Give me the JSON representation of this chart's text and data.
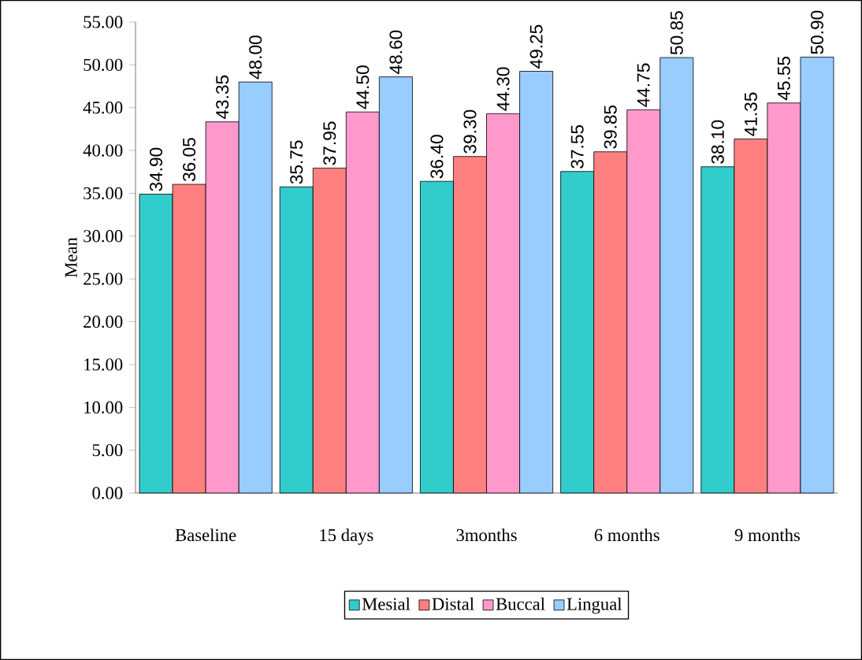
{
  "chart_data": {
    "type": "bar",
    "ylabel": "Mean",
    "categories": [
      "Baseline",
      "15 days",
      "3months",
      "6 months",
      "9 months"
    ],
    "series": [
      {
        "name": "Mesial",
        "color": "#33cccc",
        "values": [
          34.9,
          35.75,
          36.4,
          37.55,
          38.1
        ],
        "value_labels": [
          "34.90",
          "35.75",
          "36.40",
          "37.55",
          "38.10"
        ]
      },
      {
        "name": "Distal",
        "color": "#ff8080",
        "values": [
          36.05,
          37.95,
          39.3,
          39.85,
          41.35
        ],
        "value_labels": [
          "36.05",
          "37.95",
          "39.30",
          "39.85",
          "41.35"
        ]
      },
      {
        "name": "Buccal",
        "color": "#ff99cc",
        "values": [
          43.35,
          44.5,
          44.3,
          44.75,
          45.55
        ],
        "value_labels": [
          "43.35",
          "44.50",
          "44.30",
          "44.75",
          "45.55"
        ]
      },
      {
        "name": "Lingual",
        "color": "#99ccff",
        "values": [
          48.0,
          48.6,
          49.25,
          50.85,
          50.9
        ],
        "value_labels": [
          "48.00",
          "48.60",
          "49.25",
          "50.85",
          "50.90"
        ]
      }
    ],
    "ylim": [
      0,
      55
    ],
    "yticks": [
      {
        "value": 0,
        "label": "0.00"
      },
      {
        "value": 5,
        "label": "5.00"
      },
      {
        "value": 10,
        "label": "10.00"
      },
      {
        "value": 15,
        "label": "15.00"
      },
      {
        "value": 20,
        "label": "20.00"
      },
      {
        "value": 25,
        "label": "25.00"
      },
      {
        "value": 30,
        "label": "30.00"
      },
      {
        "value": 35,
        "label": "35.00"
      },
      {
        "value": 40,
        "label": "40.00"
      },
      {
        "value": 45,
        "label": "45.00"
      },
      {
        "value": 50,
        "label": "50.00"
      },
      {
        "value": 55,
        "label": "55.00"
      }
    ],
    "legend": "bottom",
    "grid": false
  }
}
